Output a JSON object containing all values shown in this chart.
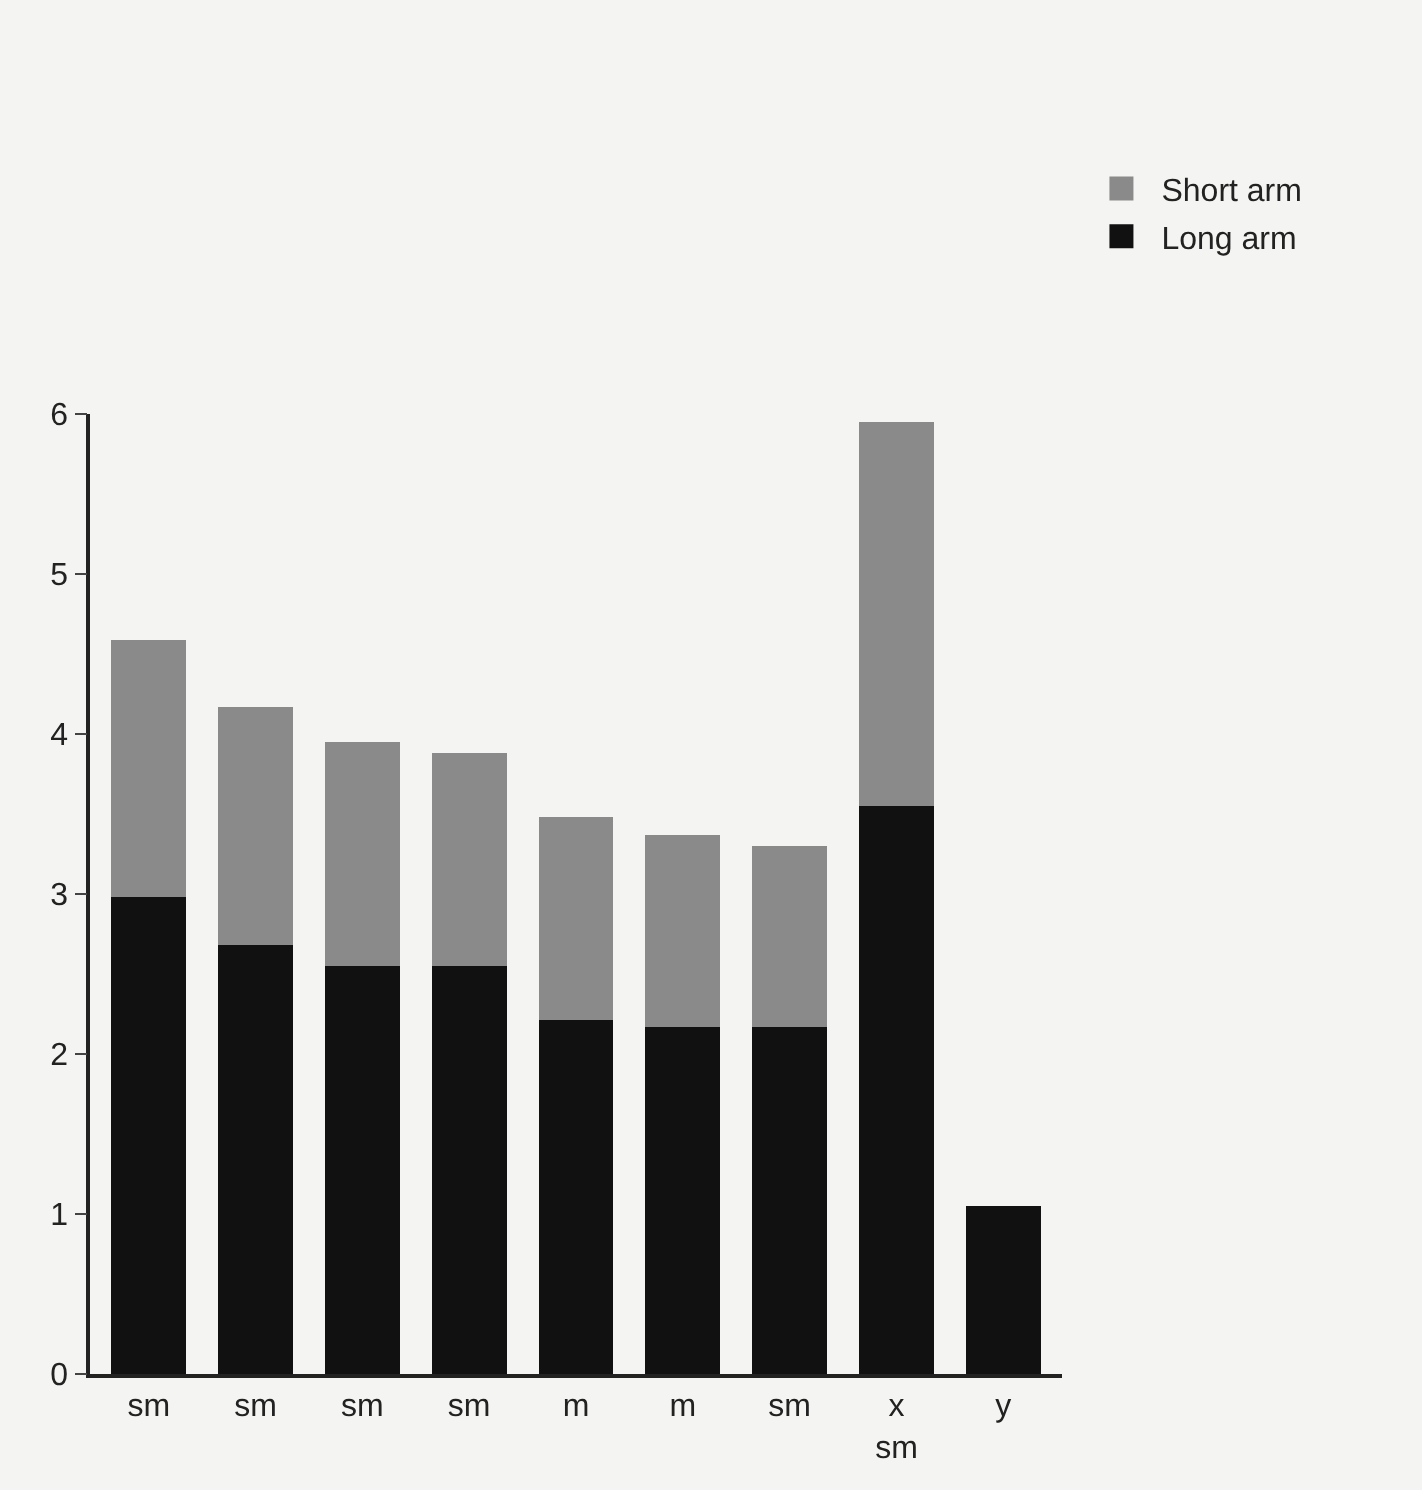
{
  "chart_data": {
    "type": "bar",
    "stacked": true,
    "categories": [
      "sm",
      "sm",
      "sm",
      "sm",
      "m",
      "m",
      "sm",
      "x\nsm",
      "y"
    ],
    "series": [
      {
        "name": "Long arm",
        "color": "#111111",
        "values": [
          2.98,
          2.68,
          2.55,
          2.55,
          2.21,
          2.17,
          2.17,
          3.55,
          1.05
        ]
      },
      {
        "name": "Short arm",
        "color": "#8a8a8a",
        "values": [
          1.61,
          1.49,
          1.4,
          1.33,
          1.27,
          1.2,
          1.13,
          2.4,
          null
        ]
      }
    ],
    "ylim": [
      0,
      6
    ],
    "yticks": [
      0,
      1,
      2,
      3,
      4,
      5,
      6
    ],
    "grid": false,
    "legend": "top right"
  }
}
